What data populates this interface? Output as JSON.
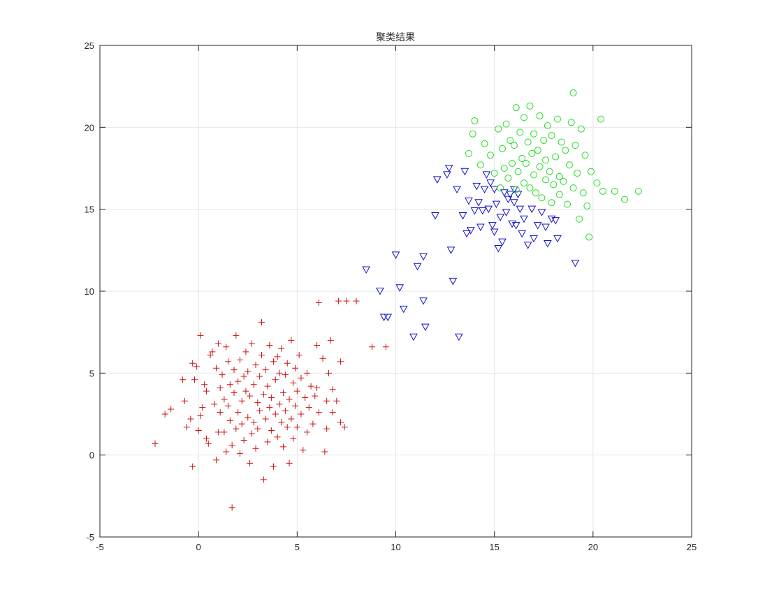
{
  "chart_data": {
    "type": "scatter",
    "title": "聚类结果",
    "xlabel": "",
    "ylabel": "",
    "xlim": [
      -5,
      25
    ],
    "ylim": [
      -5,
      25
    ],
    "xticks": [
      -5,
      0,
      5,
      10,
      15,
      20,
      25
    ],
    "yticks": [
      -5,
      0,
      5,
      10,
      15,
      20,
      25
    ],
    "grid": true,
    "colors": {
      "cluster1": "#cc1111",
      "cluster2": "#1111cc",
      "cluster3": "#22dd22",
      "axis": "#262626",
      "grid": "#e6e6e6"
    },
    "series": [
      {
        "marker": "plus",
        "color": "#cc1111",
        "values": [
          [
            -2.2,
            0.7
          ],
          [
            -1.7,
            2.5
          ],
          [
            -1.4,
            2.8
          ],
          [
            -0.8,
            4.6
          ],
          [
            -0.7,
            3.3
          ],
          [
            -0.6,
            1.7
          ],
          [
            -0.4,
            2.2
          ],
          [
            -0.3,
            5.6
          ],
          [
            -0.3,
            -0.7
          ],
          [
            -0.2,
            4.6
          ],
          [
            -0.1,
            5.4
          ],
          [
            0.0,
            1.5
          ],
          [
            0.1,
            2.4
          ],
          [
            0.1,
            7.3
          ],
          [
            0.2,
            2.9
          ],
          [
            0.3,
            4.3
          ],
          [
            0.4,
            3.9
          ],
          [
            0.4,
            1.0
          ],
          [
            0.5,
            0.7
          ],
          [
            0.6,
            6.1
          ],
          [
            0.7,
            6.3
          ],
          [
            0.8,
            3.1
          ],
          [
            0.9,
            -0.3
          ],
          [
            0.9,
            5.3
          ],
          [
            1.0,
            6.8
          ],
          [
            1.0,
            1.4
          ],
          [
            1.1,
            4.1
          ],
          [
            1.1,
            2.6
          ],
          [
            1.2,
            4.9
          ],
          [
            1.3,
            3.4
          ],
          [
            1.3,
            1.4
          ],
          [
            1.4,
            6.6
          ],
          [
            1.4,
            0.2
          ],
          [
            1.5,
            5.7
          ],
          [
            1.5,
            3.0
          ],
          [
            1.6,
            4.3
          ],
          [
            1.6,
            2.1
          ],
          [
            1.7,
            0.6
          ],
          [
            1.7,
            -3.2
          ],
          [
            1.8,
            5.2
          ],
          [
            1.8,
            3.8
          ],
          [
            1.9,
            1.6
          ],
          [
            1.9,
            7.3
          ],
          [
            2.0,
            4.5
          ],
          [
            2.0,
            2.6
          ],
          [
            2.1,
            0.1
          ],
          [
            2.1,
            5.8
          ],
          [
            2.2,
            3.3
          ],
          [
            2.2,
            1.9
          ],
          [
            2.3,
            4.8
          ],
          [
            2.3,
            0.9
          ],
          [
            2.4,
            6.3
          ],
          [
            2.4,
            3.9
          ],
          [
            2.5,
            2.3
          ],
          [
            2.5,
            5.1
          ],
          [
            2.6,
            -0.5
          ],
          [
            2.6,
            3.6
          ],
          [
            2.7,
            1.3
          ],
          [
            2.7,
            6.8
          ],
          [
            2.8,
            4.3
          ],
          [
            2.8,
            2.0
          ],
          [
            2.9,
            5.5
          ],
          [
            2.9,
            0.4
          ],
          [
            3.0,
            3.2
          ],
          [
            3.0,
            1.6
          ],
          [
            3.1,
            4.8
          ],
          [
            3.1,
            2.7
          ],
          [
            3.2,
            8.1
          ],
          [
            3.2,
            6.1
          ],
          [
            3.3,
            3.7
          ],
          [
            3.3,
            -1.5
          ],
          [
            3.4,
            2.2
          ],
          [
            3.4,
            5.2
          ],
          [
            3.5,
            0.8
          ],
          [
            3.5,
            4.2
          ],
          [
            3.6,
            2.9
          ],
          [
            3.6,
            6.7
          ],
          [
            3.7,
            1.5
          ],
          [
            3.7,
            3.5
          ],
          [
            3.8,
            5.7
          ],
          [
            3.8,
            -0.7
          ],
          [
            3.9,
            2.5
          ],
          [
            3.9,
            4.6
          ],
          [
            4.0,
            6.0
          ],
          [
            4.0,
            1.1
          ],
          [
            4.1,
            3.1
          ],
          [
            4.1,
            5.0
          ],
          [
            4.2,
            2.0
          ],
          [
            4.2,
            6.5
          ],
          [
            4.3,
            3.8
          ],
          [
            4.3,
            0.5
          ],
          [
            4.4,
            4.9
          ],
          [
            4.4,
            2.7
          ],
          [
            4.5,
            1.7
          ],
          [
            4.5,
            5.6
          ],
          [
            4.6,
            3.4
          ],
          [
            4.6,
            -0.5
          ],
          [
            4.7,
            7.0
          ],
          [
            4.7,
            2.2
          ],
          [
            4.8,
            4.4
          ],
          [
            4.8,
            1.0
          ],
          [
            4.9,
            3.0
          ],
          [
            4.9,
            5.3
          ],
          [
            5.0,
            1.7
          ],
          [
            5.0,
            3.9
          ],
          [
            5.1,
            6.1
          ],
          [
            5.2,
            2.5
          ],
          [
            5.2,
            4.7
          ],
          [
            5.3,
            0.3
          ],
          [
            5.4,
            3.5
          ],
          [
            5.5,
            5.0
          ],
          [
            5.5,
            1.4
          ],
          [
            5.6,
            2.9
          ],
          [
            5.7,
            4.2
          ],
          [
            5.8,
            1.9
          ],
          [
            5.9,
            3.6
          ],
          [
            6.0,
            4.1
          ],
          [
            6.0,
            6.7
          ],
          [
            6.1,
            9.3
          ],
          [
            6.1,
            2.6
          ],
          [
            6.3,
            5.9
          ],
          [
            6.4,
            0.2
          ],
          [
            6.5,
            3.3
          ],
          [
            6.5,
            1.6
          ],
          [
            6.6,
            5.0
          ],
          [
            6.7,
            7.0
          ],
          [
            6.8,
            2.6
          ],
          [
            6.8,
            4.0
          ],
          [
            7.0,
            3.3
          ],
          [
            7.1,
            9.4
          ],
          [
            7.2,
            5.7
          ],
          [
            7.2,
            2.0
          ],
          [
            7.4,
            1.7
          ],
          [
            7.5,
            9.4
          ],
          [
            8.0,
            9.4
          ],
          [
            8.8,
            6.6
          ],
          [
            9.5,
            6.6
          ]
        ]
      },
      {
        "marker": "triangle-down",
        "color": "#1111cc",
        "values": [
          [
            8.5,
            11.3
          ],
          [
            9.2,
            10.0
          ],
          [
            9.4,
            8.4
          ],
          [
            9.6,
            8.4
          ],
          [
            10.0,
            12.2
          ],
          [
            10.2,
            10.2
          ],
          [
            10.4,
            8.9
          ],
          [
            10.9,
            7.2
          ],
          [
            11.1,
            11.5
          ],
          [
            11.4,
            9.4
          ],
          [
            11.4,
            12.1
          ],
          [
            11.5,
            7.8
          ],
          [
            12.0,
            14.6
          ],
          [
            12.1,
            16.8
          ],
          [
            12.6,
            17.1
          ],
          [
            12.7,
            17.5
          ],
          [
            12.8,
            12.5
          ],
          [
            12.9,
            10.6
          ],
          [
            13.1,
            16.2
          ],
          [
            13.2,
            7.2
          ],
          [
            13.4,
            14.6
          ],
          [
            13.5,
            17.3
          ],
          [
            13.6,
            13.5
          ],
          [
            13.7,
            15.5
          ],
          [
            13.8,
            13.7
          ],
          [
            14.0,
            14.9
          ],
          [
            14.1,
            16.4
          ],
          [
            14.2,
            15.4
          ],
          [
            14.3,
            13.9
          ],
          [
            14.4,
            14.9
          ],
          [
            14.5,
            16.2
          ],
          [
            14.6,
            17.1
          ],
          [
            14.7,
            15.0
          ],
          [
            14.8,
            16.6
          ],
          [
            14.9,
            14.0
          ],
          [
            15.0,
            16.2
          ],
          [
            15.0,
            13.6
          ],
          [
            15.1,
            15.3
          ],
          [
            15.2,
            12.6
          ],
          [
            15.3,
            14.5
          ],
          [
            15.4,
            13.0
          ],
          [
            15.5,
            16.0
          ],
          [
            15.6,
            14.8
          ],
          [
            15.7,
            15.6
          ],
          [
            15.8,
            15.9
          ],
          [
            15.9,
            14.1
          ],
          [
            16.0,
            15.4
          ],
          [
            16.0,
            16.2
          ],
          [
            16.1,
            14.0
          ],
          [
            16.2,
            15.9
          ],
          [
            16.3,
            15.0
          ],
          [
            16.4,
            13.5
          ],
          [
            16.5,
            14.4
          ],
          [
            16.7,
            12.8
          ],
          [
            16.9,
            15.0
          ],
          [
            17.0,
            13.2
          ],
          [
            17.2,
            14.0
          ],
          [
            17.4,
            14.8
          ],
          [
            17.6,
            13.9
          ],
          [
            17.7,
            12.9
          ],
          [
            17.9,
            14.4
          ],
          [
            18.1,
            14.3
          ],
          [
            18.2,
            13.2
          ],
          [
            19.1,
            11.7
          ]
        ]
      },
      {
        "marker": "circle",
        "color": "#22dd22",
        "values": [
          [
            13.7,
            18.4
          ],
          [
            13.9,
            19.6
          ],
          [
            14.0,
            20.4
          ],
          [
            14.3,
            17.7
          ],
          [
            14.5,
            19.0
          ],
          [
            14.8,
            18.3
          ],
          [
            15.0,
            17.2
          ],
          [
            15.2,
            19.9
          ],
          [
            15.3,
            16.3
          ],
          [
            15.4,
            18.7
          ],
          [
            15.5,
            17.5
          ],
          [
            15.6,
            20.2
          ],
          [
            15.7,
            16.9
          ],
          [
            15.8,
            19.2
          ],
          [
            15.9,
            17.8
          ],
          [
            16.0,
            18.9
          ],
          [
            16.1,
            16.2
          ],
          [
            16.1,
            21.2
          ],
          [
            16.2,
            17.3
          ],
          [
            16.3,
            19.7
          ],
          [
            16.4,
            18.1
          ],
          [
            16.5,
            16.6
          ],
          [
            16.5,
            20.6
          ],
          [
            16.6,
            17.8
          ],
          [
            16.7,
            19.1
          ],
          [
            16.8,
            16.3
          ],
          [
            16.8,
            21.3
          ],
          [
            16.9,
            18.4
          ],
          [
            17.0,
            17.1
          ],
          [
            17.0,
            19.6
          ],
          [
            17.1,
            16.0
          ],
          [
            17.2,
            18.6
          ],
          [
            17.3,
            17.6
          ],
          [
            17.3,
            20.7
          ],
          [
            17.4,
            15.7
          ],
          [
            17.5,
            19.2
          ],
          [
            17.6,
            16.8
          ],
          [
            17.6,
            18.0
          ],
          [
            17.7,
            20.1
          ],
          [
            17.8,
            17.3
          ],
          [
            17.9,
            15.4
          ],
          [
            17.9,
            19.5
          ],
          [
            18.0,
            16.5
          ],
          [
            18.1,
            18.2
          ],
          [
            18.2,
            20.5
          ],
          [
            18.3,
            17.0
          ],
          [
            18.3,
            15.9
          ],
          [
            18.4,
            19.1
          ],
          [
            18.5,
            16.7
          ],
          [
            18.6,
            18.6
          ],
          [
            18.7,
            15.3
          ],
          [
            18.8,
            17.7
          ],
          [
            18.9,
            20.3
          ],
          [
            19.0,
            16.3
          ],
          [
            19.0,
            22.1
          ],
          [
            19.1,
            18.9
          ],
          [
            19.2,
            17.2
          ],
          [
            19.3,
            14.4
          ],
          [
            19.4,
            19.9
          ],
          [
            19.5,
            16.0
          ],
          [
            19.6,
            18.3
          ],
          [
            19.7,
            15.2
          ],
          [
            19.8,
            13.3
          ],
          [
            19.9,
            17.3
          ],
          [
            20.2,
            16.6
          ],
          [
            20.4,
            20.5
          ],
          [
            20.5,
            16.1
          ],
          [
            21.1,
            16.1
          ],
          [
            21.6,
            15.6
          ],
          [
            22.3,
            16.1
          ]
        ]
      }
    ]
  }
}
